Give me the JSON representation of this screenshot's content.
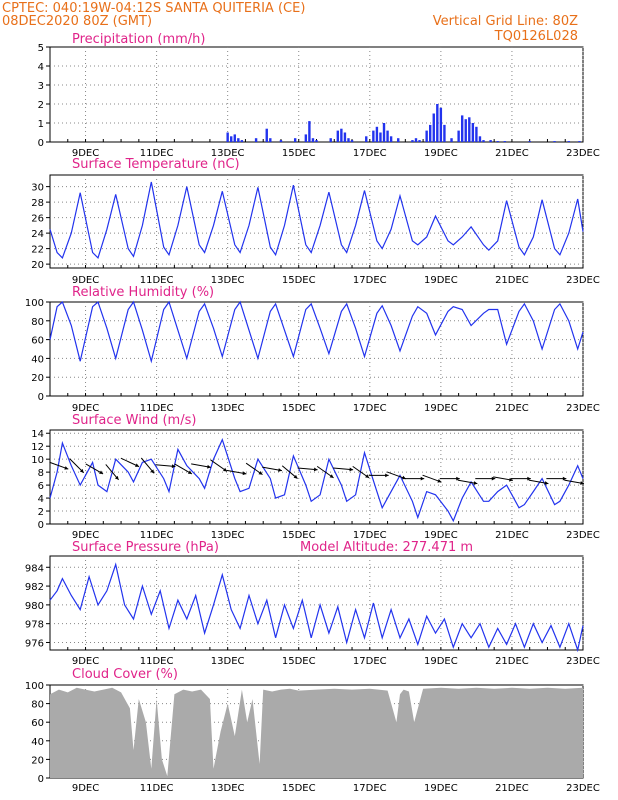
{
  "header": {
    "line1_left": "CPTEC:   040:19W-04:12S   SANTA QUITERIA (CE)",
    "line2_left": "08DEC2020 80Z (GMT)",
    "line2_right": "Vertical Grid Line: 80Z",
    "line3_right": "TQ0126L028"
  },
  "colors": {
    "header": "#e8701a",
    "panel_title": "#e0248a",
    "series": "#2233ee",
    "cloud_fill": "#aaaaaa",
    "wind_arrow": "#000000"
  },
  "x_axis": {
    "tick_labels": [
      "9DEC",
      "11DEC",
      "13DEC",
      "15DEC",
      "17DEC",
      "19DEC",
      "21DEC",
      "23DEC"
    ],
    "tick_days": [
      9,
      11,
      13,
      15,
      17,
      19,
      21,
      23
    ],
    "start_day": 8.0,
    "end_day": 23.0
  },
  "chart_data": [
    {
      "id": "precip",
      "type": "bar",
      "title": "Precipitation (mm/h)",
      "ylim": [
        0,
        5
      ],
      "yticks": [
        "0",
        "1",
        "2",
        "3",
        "4",
        "5"
      ],
      "series": [
        {
          "x": [
            13.0,
            13.1,
            13.2,
            13.3,
            13.4,
            13.8,
            14.1,
            14.2,
            14.5,
            14.9,
            15.2,
            15.3,
            15.4,
            15.5,
            15.9,
            16.1,
            16.2,
            16.3,
            16.4,
            16.5,
            16.9,
            17.1,
            17.2,
            17.3,
            17.4,
            17.5,
            17.6,
            17.8,
            18.2,
            18.3,
            18.4,
            18.6,
            18.7,
            18.8,
            18.9,
            19.0,
            19.1,
            19.3,
            19.5,
            19.6,
            19.7,
            19.8,
            19.9,
            20.0,
            20.1,
            20.2,
            20.4,
            20.6,
            20.8,
            21.5,
            22.2,
            22.6,
            22.9
          ],
          "values": [
            0.5,
            0.3,
            0.4,
            0.2,
            0.1,
            0.2,
            0.7,
            0.2,
            0.1,
            0.2,
            0.4,
            1.1,
            0.2,
            0.1,
            0.2,
            0.6,
            0.7,
            0.5,
            0.2,
            0.1,
            0.3,
            0.6,
            0.8,
            0.5,
            1.0,
            0.6,
            0.3,
            0.2,
            0.1,
            0.2,
            0.1,
            0.6,
            0.9,
            1.5,
            2.0,
            1.8,
            0.9,
            0.2,
            0.6,
            1.4,
            1.2,
            1.3,
            1.0,
            0.8,
            0.3,
            0.1,
            0.1,
            0.05,
            0.05,
            0.05,
            0.05,
            0.05,
            0.05
          ]
        }
      ]
    },
    {
      "id": "temp",
      "type": "line",
      "title": "Surface Temperature (nC)",
      "ylim": [
        19.5,
        31.5
      ],
      "yticks": [
        "20",
        "22",
        "24",
        "26",
        "28",
        "30"
      ],
      "series": [
        {
          "x": [
            8.0,
            8.2,
            8.35,
            8.6,
            8.85,
            9.2,
            9.35,
            9.6,
            9.85,
            10.2,
            10.35,
            10.6,
            10.85,
            11.2,
            11.35,
            11.6,
            11.85,
            12.2,
            12.35,
            12.6,
            12.85,
            13.2,
            13.35,
            13.6,
            13.85,
            14.2,
            14.35,
            14.6,
            14.85,
            15.2,
            15.35,
            15.6,
            15.85,
            16.2,
            16.35,
            16.6,
            16.85,
            17.2,
            17.35,
            17.6,
            17.85,
            18.2,
            18.35,
            18.6,
            18.85,
            19.2,
            19.35,
            19.6,
            19.85,
            20.2,
            20.35,
            20.6,
            20.85,
            21.2,
            21.35,
            21.6,
            21.85,
            22.2,
            22.35,
            22.6,
            22.85,
            23.0
          ],
          "values": [
            24.5,
            21.5,
            20.8,
            24.0,
            29.2,
            21.5,
            20.8,
            24.5,
            29.0,
            22.0,
            21.0,
            25.0,
            30.6,
            22.2,
            21.2,
            25.0,
            30.0,
            22.5,
            21.5,
            25.0,
            29.4,
            22.5,
            21.5,
            25.0,
            29.9,
            22.2,
            21.2,
            25.0,
            30.2,
            22.5,
            21.5,
            25.0,
            29.3,
            22.5,
            21.5,
            25.0,
            29.5,
            23.0,
            22.0,
            24.5,
            28.8,
            23.0,
            22.5,
            23.5,
            26.2,
            23.0,
            22.5,
            23.5,
            24.8,
            22.5,
            21.8,
            23.0,
            28.2,
            22.2,
            21.2,
            23.5,
            28.3,
            22.0,
            21.2,
            24.0,
            28.4,
            24.2
          ]
        }
      ]
    },
    {
      "id": "rh",
      "type": "line",
      "title": "Relative Humidity (%)",
      "ylim": [
        0,
        100
      ],
      "yticks": [
        "0",
        "20",
        "40",
        "60",
        "80",
        "100"
      ],
      "series": [
        {
          "x": [
            8.0,
            8.2,
            8.35,
            8.6,
            8.85,
            9.2,
            9.35,
            9.6,
            9.85,
            10.2,
            10.35,
            10.6,
            10.85,
            11.2,
            11.35,
            11.6,
            11.85,
            12.2,
            12.35,
            12.6,
            12.85,
            13.2,
            13.35,
            13.6,
            13.85,
            14.2,
            14.35,
            14.6,
            14.85,
            15.2,
            15.35,
            15.6,
            15.85,
            16.2,
            16.35,
            16.6,
            16.85,
            17.2,
            17.35,
            17.6,
            17.85,
            18.2,
            18.35,
            18.6,
            18.85,
            19.2,
            19.35,
            19.6,
            19.85,
            20.2,
            20.35,
            20.6,
            20.85,
            21.2,
            21.35,
            21.6,
            21.85,
            22.2,
            22.35,
            22.6,
            22.85,
            23.0
          ],
          "values": [
            60,
            95,
            100,
            75,
            37,
            95,
            100,
            72,
            40,
            92,
            100,
            70,
            37,
            92,
            100,
            70,
            40,
            90,
            98,
            72,
            42,
            92,
            100,
            70,
            40,
            90,
            98,
            70,
            42,
            92,
            98,
            72,
            45,
            90,
            98,
            72,
            42,
            88,
            96,
            75,
            48,
            85,
            95,
            88,
            65,
            90,
            95,
            92,
            75,
            88,
            92,
            92,
            55,
            90,
            98,
            80,
            50,
            92,
            98,
            80,
            50,
            68
          ]
        }
      ]
    },
    {
      "id": "wind",
      "type": "line",
      "title": "Surface Wind (m/s)",
      "ylim": [
        0,
        14.5
      ],
      "yticks": [
        "0",
        "2",
        "4",
        "6",
        "8",
        "10",
        "12",
        "14"
      ],
      "series": [
        {
          "x": [
            8.0,
            8.2,
            8.35,
            8.6,
            8.85,
            9.2,
            9.35,
            9.6,
            9.85,
            10.2,
            10.35,
            10.6,
            10.85,
            11.2,
            11.35,
            11.6,
            11.85,
            12.2,
            12.35,
            12.6,
            12.85,
            13.2,
            13.35,
            13.6,
            13.85,
            14.2,
            14.35,
            14.6,
            14.85,
            15.2,
            15.35,
            15.6,
            15.85,
            16.2,
            16.35,
            16.6,
            16.85,
            17.2,
            17.35,
            17.6,
            17.85,
            18.2,
            18.35,
            18.6,
            18.85,
            19.2,
            19.35,
            19.6,
            19.85,
            20.2,
            20.35,
            20.6,
            20.85,
            21.2,
            21.35,
            21.6,
            21.85,
            22.2,
            22.35,
            22.6,
            22.85,
            23.0
          ],
          "values": [
            4,
            8,
            12.5,
            9,
            6,
            9.5,
            6,
            5,
            10,
            8,
            6.5,
            9.5,
            10,
            7,
            5,
            11.5,
            9,
            7,
            5.5,
            10,
            13,
            7,
            5,
            5.5,
            10,
            7,
            4,
            4.5,
            10.5,
            6,
            3.5,
            4.5,
            10,
            6,
            3.5,
            4.5,
            11,
            5,
            2.5,
            5,
            7.5,
            3.5,
            1,
            5,
            4.5,
            2,
            0.5,
            4,
            6.5,
            3.5,
            3.5,
            5,
            6,
            2.5,
            3,
            5,
            7,
            3,
            3.5,
            6,
            9,
            7
          ]
        }
      ],
      "barbs": {
        "x": [
          8.25,
          8.75,
          9.25,
          9.75,
          10.25,
          10.75,
          11.25,
          11.75,
          12.25,
          12.75,
          13.25,
          13.75,
          14.25,
          14.75,
          15.25,
          15.75,
          16.25,
          16.75,
          17.25,
          17.75,
          18.25,
          18.75,
          19.25,
          19.75,
          20.25,
          20.75,
          21.25,
          21.75,
          22.25,
          22.75
        ],
        "speed": [
          9,
          9,
          8.5,
          8,
          9.5,
          9,
          9,
          8.5,
          9,
          9,
          8,
          8.5,
          8.5,
          8,
          8.5,
          8,
          8.5,
          8,
          7.5,
          7.5,
          7,
          7,
          7,
          6.5,
          7,
          7,
          7,
          6.5,
          7,
          6.5
        ],
        "dir_deg": [
          110,
          135,
          120,
          140,
          115,
          140,
          95,
          120,
          100,
          125,
          100,
          125,
          100,
          130,
          95,
          125,
          95,
          125,
          90,
          110,
          90,
          110,
          90,
          100,
          90,
          100,
          90,
          100,
          90,
          100
        ]
      }
    },
    {
      "id": "pres",
      "type": "line",
      "title": "Surface Pressure (hPa)",
      "subtitle": "Model Altitude: 277.471 m",
      "ylim": [
        975.2,
        985.2
      ],
      "yticks": [
        "976",
        "978",
        "980",
        "982",
        "984"
      ],
      "series": [
        {
          "x": [
            8.0,
            8.2,
            8.35,
            8.6,
            8.85,
            9.1,
            9.35,
            9.6,
            9.85,
            10.1,
            10.35,
            10.6,
            10.85,
            11.1,
            11.35,
            11.6,
            11.85,
            12.1,
            12.35,
            12.6,
            12.85,
            13.1,
            13.35,
            13.6,
            13.85,
            14.1,
            14.35,
            14.6,
            14.85,
            15.1,
            15.35,
            15.6,
            15.85,
            16.1,
            16.35,
            16.6,
            16.85,
            17.1,
            17.35,
            17.6,
            17.85,
            18.1,
            18.35,
            18.6,
            18.85,
            19.1,
            19.35,
            19.6,
            19.85,
            20.1,
            20.35,
            20.6,
            20.85,
            21.1,
            21.35,
            21.6,
            21.85,
            22.1,
            22.35,
            22.6,
            22.85,
            23.0
          ],
          "values": [
            980.5,
            981.5,
            982.8,
            981.0,
            979.5,
            983.0,
            980.0,
            981.5,
            984.3,
            980.0,
            978.5,
            982.0,
            979.0,
            981.5,
            977.5,
            980.5,
            978.5,
            981.0,
            977.0,
            980.0,
            983.2,
            979.5,
            977.5,
            981.0,
            978.0,
            980.5,
            976.5,
            980.0,
            977.5,
            980.5,
            976.5,
            980.0,
            977.0,
            979.8,
            976.0,
            979.5,
            976.5,
            980.2,
            976.5,
            979.5,
            976.5,
            978.5,
            975.8,
            978.8,
            977.0,
            978.5,
            975.5,
            978.0,
            976.5,
            978.0,
            975.5,
            977.5,
            975.8,
            978.0,
            975.5,
            978.0,
            976.0,
            977.8,
            975.5,
            978.0,
            975.2,
            977.8
          ]
        }
      ]
    },
    {
      "id": "cloud",
      "type": "area",
      "title": "Cloud Cover (%)",
      "ylim": [
        0,
        100
      ],
      "yticks": [
        "0",
        "20",
        "40",
        "60",
        "80",
        "100"
      ],
      "series": [
        {
          "x": [
            8.0,
            8.25,
            8.5,
            8.75,
            9.0,
            9.25,
            9.5,
            9.75,
            10.0,
            10.25,
            10.35,
            10.5,
            10.7,
            10.85,
            11.0,
            11.15,
            11.3,
            11.5,
            11.75,
            12.0,
            12.25,
            12.5,
            12.6,
            12.8,
            13.0,
            13.2,
            13.4,
            13.55,
            13.7,
            13.9,
            14.0,
            14.25,
            14.5,
            14.75,
            15.0,
            15.5,
            16.0,
            16.5,
            17.0,
            17.5,
            17.75,
            17.85,
            17.95,
            18.1,
            18.25,
            18.5,
            19.0,
            19.5,
            20.0,
            20.5,
            21.0,
            21.5,
            22.0,
            22.5,
            23.0
          ],
          "values": [
            90,
            95,
            92,
            97,
            95,
            93,
            95,
            97,
            92,
            75,
            30,
            85,
            60,
            10,
            85,
            20,
            2,
            90,
            95,
            93,
            95,
            85,
            10,
            50,
            80,
            45,
            95,
            60,
            85,
            15,
            95,
            93,
            95,
            96,
            94,
            95,
            96,
            95,
            96,
            94,
            60,
            90,
            95,
            93,
            60,
            96,
            97,
            96,
            97,
            96,
            97,
            96,
            97,
            96,
            97
          ]
        }
      ]
    }
  ]
}
